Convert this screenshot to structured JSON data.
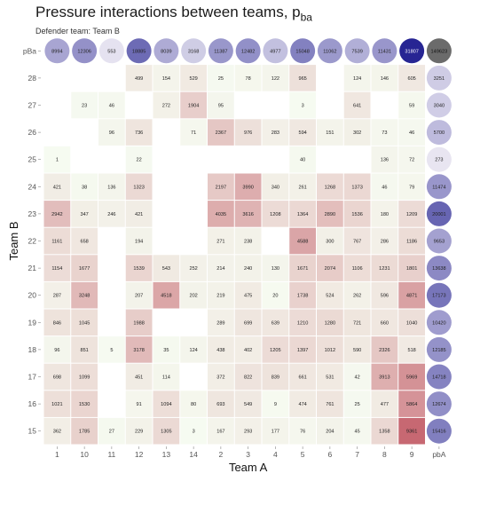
{
  "chart_data": {
    "type": "heatmap",
    "title": "Pressure interactions between teams, p",
    "title_subscript": "ba",
    "subtitle": "Defender team:  Team B",
    "xlabel": "Team A",
    "ylabel": "Team B",
    "x_categories": [
      "1",
      "10",
      "11",
      "12",
      "13",
      "14",
      "2",
      "3",
      "4",
      "5",
      "6",
      "7",
      "8",
      "9",
      "pbA"
    ],
    "y_categories": [
      "pBa",
      "28",
      "27",
      "26",
      "25",
      "24",
      "23",
      "22",
      "21",
      "20",
      "19",
      "18",
      "17",
      "16",
      "15"
    ],
    "top_row_label": "pBa",
    "pBa": [
      8994,
      12306,
      553,
      18885,
      8039,
      3168,
      11387,
      12482,
      4977,
      15048,
      11062,
      7539,
      11431,
      31807,
      149623
    ],
    "rows": [
      {
        "team": "28",
        "values": [
          null,
          null,
          null,
          499,
          154,
          529,
          25,
          78,
          122,
          965,
          null,
          124,
          146,
          605
        ],
        "pbA": 3251
      },
      {
        "team": "27",
        "values": [
          null,
          23,
          46,
          null,
          272,
          1904,
          95,
          null,
          null,
          3,
          null,
          641,
          null,
          59
        ],
        "pbA": 3040
      },
      {
        "team": "26",
        "values": [
          null,
          null,
          96,
          736,
          null,
          71,
          2367,
          976,
          283,
          594,
          151,
          302,
          73,
          46
        ],
        "pbA": 5700
      },
      {
        "team": "25",
        "values": [
          1,
          null,
          null,
          22,
          null,
          null,
          null,
          null,
          null,
          40,
          null,
          null,
          136,
          72
        ],
        "pbA": 273
      },
      {
        "team": "24",
        "values": [
          421,
          38,
          136,
          1323,
          null,
          null,
          2197,
          3990,
          340,
          261,
          1268,
          1373,
          46,
          79
        ],
        "pbA": 11474
      },
      {
        "team": "23",
        "values": [
          2942,
          347,
          246,
          421,
          null,
          null,
          4035,
          3616,
          1208,
          1364,
          2890,
          1536,
          180,
          1209
        ],
        "pbA": 20001
      },
      {
        "team": "22",
        "values": [
          1161,
          658,
          null,
          194,
          null,
          null,
          271,
          238,
          null,
          4588,
          300,
          767,
          286,
          1186
        ],
        "pbA": 9653
      },
      {
        "team": "21",
        "values": [
          1154,
          1677,
          null,
          1539,
          543,
          252,
          214,
          240,
          130,
          1671,
          2074,
          1106,
          1231,
          1801
        ],
        "pbA": 13638
      },
      {
        "team": "20",
        "values": [
          287,
          3248,
          null,
          207,
          4518,
          202,
          219,
          475,
          20,
          1738,
          524,
          262,
          596,
          4871
        ],
        "pbA": 17173
      },
      {
        "team": "19",
        "values": [
          846,
          1045,
          null,
          1988,
          null,
          null,
          289,
          699,
          639,
          1210,
          1280,
          721,
          660,
          1040
        ],
        "pbA": 10420
      },
      {
        "team": "18",
        "values": [
          96,
          851,
          5,
          3178,
          35,
          124,
          438,
          402,
          1205,
          1397,
          1012,
          590,
          2326,
          518
        ],
        "pbA": 12185
      },
      {
        "team": "17",
        "values": [
          698,
          1099,
          null,
          451,
          114,
          null,
          372,
          822,
          839,
          661,
          531,
          42,
          3913,
          5969
        ],
        "pbA": 14718
      },
      {
        "team": "16",
        "values": [
          1021,
          1530,
          null,
          91,
          1094,
          80,
          693,
          549,
          9,
          474,
          761,
          25,
          477,
          5864
        ],
        "pbA": 12674
      },
      {
        "team": "15",
        "values": [
          362,
          1785,
          27,
          229,
          1305,
          3,
          167,
          293,
          177,
          76,
          204,
          45,
          1358,
          9361
        ],
        "pbA": 15416
      }
    ],
    "colors": {
      "low": "#f6fbf1",
      "high": "#c76872",
      "bubble_low": "#ebe8f3",
      "bubble_high": "#272593",
      "bubble_total": "#6b6b6b",
      "tick": "#555555",
      "axis_label": "#111111"
    },
    "grid": false
  }
}
